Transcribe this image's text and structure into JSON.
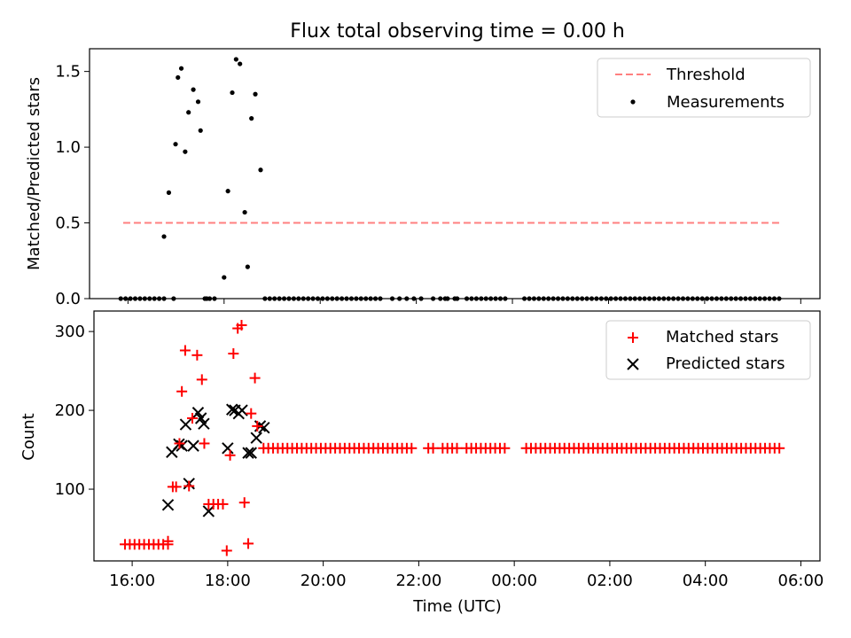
{
  "chart_data": [
    {
      "type": "scatter",
      "title": "Flux total observing time = 0.00 h",
      "xlabel": "",
      "ylabel": "Matched/Predicted stars",
      "xlim": [
        15.2,
        30.4
      ],
      "ylim": [
        0,
        1.65
      ],
      "yticks": [
        0.0,
        0.5,
        1.0,
        1.5
      ],
      "ytick_labels": [
        "0.0",
        "0.5",
        "1.0",
        "1.5"
      ],
      "xticks": [
        16,
        18,
        20,
        22,
        24,
        26,
        28,
        30
      ],
      "xtick_labels": [
        "",
        "",
        "",
        "",
        "",
        "",
        "",
        ""
      ],
      "legend": {
        "position": "top-right",
        "entries": [
          "Threshold",
          "Measurements"
        ]
      },
      "threshold": {
        "name": "Threshold",
        "y": 0.5,
        "x_start": 15.9,
        "x_end": 29.6,
        "color": "#ff7f7f",
        "style": "dashed"
      },
      "measurements": {
        "name": "Measurements",
        "color": "#000000",
        "x": [
          16.75,
          16.85,
          16.99,
          17.04,
          17.11,
          17.19,
          17.26,
          17.36,
          17.46,
          17.51,
          17.64,
          18.0,
          18.08,
          18.17,
          18.25,
          18.33,
          18.43,
          18.49,
          18.57,
          18.65,
          18.76
        ],
        "y": [
          0.41,
          0.7,
          1.02,
          1.46,
          1.52,
          0.97,
          1.23,
          1.38,
          1.3,
          1.11,
          0.0,
          0.14,
          0.71,
          1.36,
          1.58,
          1.55,
          0.57,
          0.21,
          1.19,
          1.35,
          0.85
        ],
        "zero_runs": [
          [
            15.85,
            16.75,
            0.1
          ],
          [
            16.95,
            16.95,
            0.1
          ],
          [
            17.6,
            17.85,
            0.1
          ],
          [
            18.85,
            21.3,
            0.1
          ],
          [
            21.5,
            22.1,
            0.15
          ],
          [
            22.35,
            22.9,
            0.15
          ],
          [
            22.6,
            22.6,
            0.1
          ],
          [
            22.85,
            22.85,
            0.1
          ],
          [
            23.05,
            23.85,
            0.1
          ],
          [
            24.25,
            29.6,
            0.1
          ]
        ]
      }
    },
    {
      "type": "scatter",
      "title": "",
      "xlabel": "Time (UTC)",
      "ylabel": "Count",
      "xlim": [
        15.2,
        30.4
      ],
      "ylim": [
        9,
        326
      ],
      "yticks": [
        100,
        200,
        300
      ],
      "ytick_labels": [
        "100",
        "200",
        "300"
      ],
      "xticks": [
        16,
        18,
        20,
        22,
        24,
        26,
        28,
        30
      ],
      "xtick_labels": [
        "16:00",
        "18:00",
        "20:00",
        "22:00",
        "00:00",
        "02:00",
        "04:00",
        "06:00"
      ],
      "legend": {
        "position": "top-right",
        "entries": [
          "Matched stars",
          "Predicted stars"
        ]
      },
      "series": [
        {
          "name": "Matched stars",
          "marker": "+",
          "color": "#ff0000",
          "x": [
            16.75,
            16.85,
            16.92,
            16.99,
            17.04,
            17.11,
            17.19,
            17.26,
            17.36,
            17.46,
            17.51,
            17.98,
            18.05,
            18.12,
            18.21,
            18.29,
            18.35,
            18.43,
            18.49,
            18.57,
            18.62
          ],
          "y": [
            34,
            103,
            103,
            158,
            224,
            276,
            104,
            190,
            270,
            239,
            158,
            22,
            143,
            272,
            304,
            308,
            83,
            31,
            196,
            241,
            180
          ],
          "runs": [
            [
              15.85,
              16.75,
              0.1,
              30
            ],
            [
              17.6,
              17.9,
              0.1,
              81
            ],
            [
              18.75,
              21.9,
              0.1,
              152
            ],
            [
              22.2,
              22.3,
              0.1,
              152
            ],
            [
              22.5,
              22.8,
              0.1,
              152
            ],
            [
              23.0,
              23.8,
              0.1,
              152
            ],
            [
              24.25,
              29.6,
              0.1,
              152
            ]
          ]
        },
        {
          "name": "Predicted stars",
          "marker": "x",
          "color": "#000000",
          "x": [
            16.75,
            16.83,
            16.98,
            17.04,
            17.12,
            17.19,
            17.28,
            17.38,
            17.44,
            17.5,
            17.6,
            18.0,
            18.09,
            18.15,
            18.23,
            18.3,
            18.43,
            18.49,
            18.6,
            18.68,
            18.76
          ],
          "y": [
            80,
            147,
            157,
            155,
            182,
            107,
            155,
            197,
            190,
            183,
            72,
            152,
            201,
            200,
            196,
            200,
            146,
            146,
            165,
            180,
            178
          ]
        }
      ]
    }
  ]
}
